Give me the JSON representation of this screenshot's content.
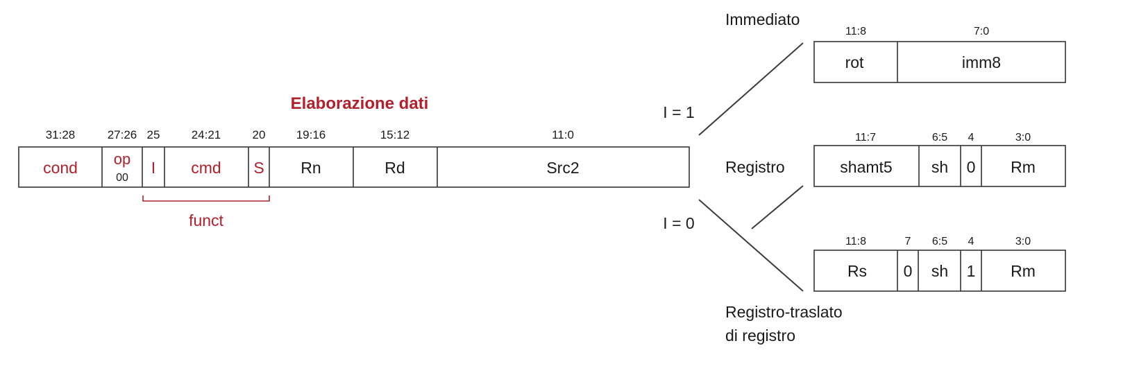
{
  "colors": {
    "accent": "#b2202c",
    "text": "#1a1a1a",
    "stroke": "#333333"
  },
  "title": "Elaborazione dati",
  "main": {
    "fields": [
      {
        "bits": "31:28",
        "label": "cond",
        "accent": true
      },
      {
        "bits": "27:26",
        "label": "op",
        "sublabel": "00",
        "accent": true
      },
      {
        "bits": "25",
        "label": "I",
        "accent": true
      },
      {
        "bits": "24:21",
        "label": "cmd",
        "accent": true
      },
      {
        "bits": "20",
        "label": "S",
        "accent": true
      },
      {
        "bits": "19:16",
        "label": "Rn",
        "accent": false
      },
      {
        "bits": "15:12",
        "label": "Rd",
        "accent": false
      },
      {
        "bits": "11:0",
        "label": "Src2",
        "accent": false
      }
    ],
    "funct_label": "funct"
  },
  "branch": {
    "i1_label": "I = 1",
    "i0_label": "I = 0"
  },
  "formats": [
    {
      "name": "Immediato",
      "fields": [
        {
          "bits": "11:8",
          "label": "rot"
        },
        {
          "bits": "7:0",
          "label": "imm8"
        }
      ]
    },
    {
      "name": "Registro",
      "fields": [
        {
          "bits": "11:7",
          "label": "shamt5"
        },
        {
          "bits": "6:5",
          "label": "sh"
        },
        {
          "bits": "4",
          "label": "0"
        },
        {
          "bits": "3:0",
          "label": "Rm"
        }
      ]
    },
    {
      "name": "Registro-traslato di registro",
      "name_lines": [
        "Registro-traslato",
        "di registro"
      ],
      "fields": [
        {
          "bits": "11:8",
          "label": "Rs"
        },
        {
          "bits": "7",
          "label": "0"
        },
        {
          "bits": "6:5",
          "label": "sh"
        },
        {
          "bits": "4",
          "label": "1"
        },
        {
          "bits": "3:0",
          "label": "Rm"
        }
      ]
    }
  ]
}
